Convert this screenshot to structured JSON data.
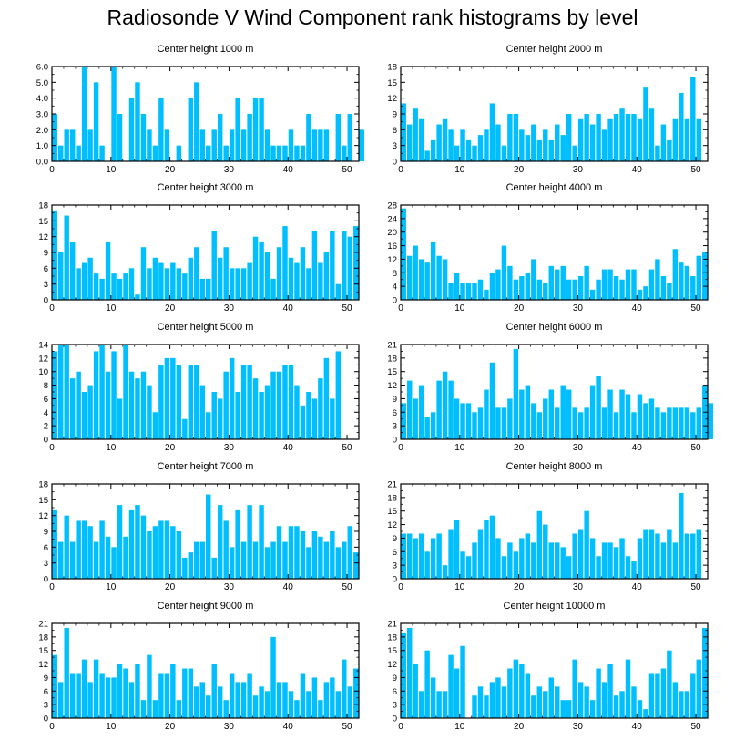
{
  "title": "Radiosonde V Wind Component rank histograms by level",
  "colors": {
    "bar": "#00BFFF",
    "axis": "#000000"
  },
  "chart_data": [
    {
      "type": "bar",
      "title": "Center height 1000 m",
      "x_ticks": [
        0,
        10,
        20,
        30,
        40,
        50
      ],
      "y_ticks": [
        "0.0",
        "1.0",
        "2.0",
        "3.0",
        "4.0",
        "5.0",
        "6.0"
      ],
      "xlim": [
        0,
        52
      ],
      "ylim": [
        0,
        6
      ],
      "values": [
        3,
        1,
        2,
        2,
        1,
        6,
        2,
        5,
        1,
        0,
        6,
        3,
        0,
        4,
        5,
        3,
        2,
        1,
        4,
        2,
        0,
        1,
        0,
        4,
        5,
        2,
        1,
        2,
        3,
        1,
        2,
        4,
        2,
        3,
        4,
        4,
        2,
        1,
        1,
        1,
        2,
        1,
        1,
        3,
        2,
        2,
        2,
        0,
        3,
        1,
        3,
        0,
        2
      ]
    },
    {
      "type": "bar",
      "title": "Center height 2000 m",
      "x_ticks": [
        0,
        10,
        20,
        30,
        40,
        50
      ],
      "y_ticks": [
        "0",
        "3",
        "6",
        "9",
        "12",
        "15",
        "18"
      ],
      "xlim": [
        0,
        52
      ],
      "ylim": [
        0,
        18
      ],
      "values": [
        11,
        7,
        10,
        8,
        2,
        4,
        7,
        8,
        6,
        3,
        6,
        4,
        3,
        5,
        6,
        11,
        7,
        3,
        9,
        9,
        6,
        5,
        7,
        4,
        6,
        4,
        7,
        5,
        9,
        3,
        8,
        9,
        7,
        9,
        6,
        8,
        9,
        10,
        9,
        9,
        8,
        14,
        10,
        3,
        7,
        4,
        8,
        13,
        8,
        16,
        8
      ]
    },
    {
      "type": "bar",
      "title": "Center height 3000 m",
      "x_ticks": [
        0,
        10,
        20,
        30,
        40,
        50
      ],
      "y_ticks": [
        "0",
        "3",
        "6",
        "9",
        "12",
        "15",
        "18"
      ],
      "xlim": [
        0,
        52
      ],
      "ylim": [
        0,
        18
      ],
      "values": [
        17,
        9,
        16,
        11,
        6,
        7,
        8,
        5,
        4,
        11,
        5,
        4,
        5,
        6,
        1,
        10,
        6,
        8,
        7,
        6,
        7,
        6,
        5,
        8,
        10,
        4,
        4,
        13,
        8,
        10,
        6,
        6,
        6,
        7,
        12,
        11,
        9,
        4,
        10,
        14,
        8,
        7,
        10,
        6,
        13,
        7,
        9,
        13,
        3,
        13,
        12,
        14
      ]
    },
    {
      "type": "bar",
      "title": "Center height 4000 m",
      "x_ticks": [
        0,
        10,
        20,
        30,
        40,
        50
      ],
      "y_ticks": [
        "0",
        "4",
        "8",
        "12",
        "16",
        "20",
        "24",
        "28"
      ],
      "xlim": [
        0,
        52
      ],
      "ylim": [
        0,
        28
      ],
      "values": [
        27,
        13,
        16,
        12,
        11,
        17,
        13,
        12,
        5,
        8,
        5,
        5,
        5,
        6,
        3,
        8,
        9,
        16,
        10,
        6,
        7,
        8,
        12,
        6,
        5,
        10,
        9,
        10,
        6,
        6,
        7,
        10,
        3,
        6,
        9,
        9,
        7,
        6,
        9,
        9,
        3,
        4,
        9,
        12,
        7,
        5,
        15,
        11,
        10,
        7,
        13,
        14
      ]
    },
    {
      "type": "bar",
      "title": "Center height 5000 m",
      "x_ticks": [
        0,
        10,
        20,
        30,
        40,
        50
      ],
      "y_ticks": [
        "0",
        "2",
        "4",
        "6",
        "8",
        "10",
        "12",
        "14"
      ],
      "xlim": [
        0,
        52
      ],
      "ylim": [
        0,
        14
      ],
      "values": [
        13,
        14,
        14,
        9,
        10,
        7,
        8,
        13,
        14,
        10,
        13,
        6,
        14,
        10,
        9,
        10,
        8,
        4,
        11,
        12,
        12,
        11,
        3,
        11,
        11,
        8,
        4,
        7,
        6,
        10,
        12,
        7,
        11,
        11,
        9,
        7,
        8,
        10,
        10,
        11,
        11,
        8,
        5,
        7,
        6,
        9,
        12,
        6,
        13
      ]
    },
    {
      "type": "bar",
      "title": "Center height 6000 m",
      "x_ticks": [
        0,
        10,
        20,
        30,
        40,
        50
      ],
      "y_ticks": [
        "0",
        "3",
        "6",
        "9",
        "12",
        "15",
        "18",
        "21"
      ],
      "xlim": [
        0,
        52
      ],
      "ylim": [
        0,
        21
      ],
      "values": [
        8,
        13,
        9,
        12,
        5,
        6,
        13,
        15,
        13,
        9,
        8,
        8,
        6,
        7,
        11,
        17,
        7,
        7,
        9,
        20,
        11,
        12,
        8,
        6,
        9,
        11,
        7,
        12,
        11,
        7,
        6,
        7,
        12,
        14,
        7,
        11,
        6,
        11,
        10,
        6,
        10,
        8,
        9,
        7,
        6,
        7,
        7,
        7,
        7,
        6,
        7,
        12,
        8
      ]
    },
    {
      "type": "bar",
      "title": "Center height 7000 m",
      "x_ticks": [
        0,
        10,
        20,
        30,
        40,
        50
      ],
      "y_ticks": [
        "0",
        "3",
        "6",
        "9",
        "12",
        "15",
        "18"
      ],
      "xlim": [
        0,
        52
      ],
      "ylim": [
        0,
        18
      ],
      "values": [
        13,
        7,
        12,
        7,
        11,
        11,
        10,
        7,
        11,
        8,
        6,
        14,
        8,
        13,
        14,
        12,
        9,
        10,
        11,
        11,
        10,
        9,
        4,
        5,
        7,
        7,
        16,
        4,
        14,
        11,
        6,
        13,
        7,
        14,
        7,
        14,
        6,
        7,
        10,
        7,
        10,
        10,
        9,
        6,
        9,
        8,
        7,
        9,
        6,
        7,
        10,
        5
      ]
    },
    {
      "type": "bar",
      "title": "Center height 8000 m",
      "x_ticks": [
        0,
        10,
        20,
        30,
        40,
        50
      ],
      "y_ticks": [
        "0",
        "3",
        "6",
        "9",
        "12",
        "15",
        "18",
        "21"
      ],
      "xlim": [
        0,
        52
      ],
      "ylim": [
        0,
        21
      ],
      "values": [
        10,
        10,
        9,
        10,
        6,
        9,
        10,
        3,
        11,
        13,
        6,
        5,
        8,
        11,
        13,
        14,
        9,
        5,
        8,
        6,
        9,
        10,
        8,
        15,
        12,
        8,
        8,
        7,
        5,
        10,
        11,
        15,
        9,
        5,
        8,
        8,
        7,
        9,
        5,
        4,
        9,
        11,
        11,
        10,
        8,
        11,
        8,
        19,
        10,
        10,
        11
      ]
    },
    {
      "type": "bar",
      "title": "Center height 9000 m",
      "x_ticks": [
        0,
        10,
        20,
        30,
        40,
        50
      ],
      "y_ticks": [
        "0",
        "3",
        "6",
        "9",
        "12",
        "15",
        "18",
        "21"
      ],
      "xlim": [
        0,
        52
      ],
      "ylim": [
        0,
        21
      ],
      "values": [
        14,
        8,
        20,
        10,
        10,
        13,
        8,
        13,
        10,
        9,
        9,
        12,
        11,
        8,
        12,
        4,
        14,
        4,
        10,
        10,
        12,
        4,
        11,
        11,
        7,
        8,
        5,
        12,
        7,
        4,
        10,
        8,
        8,
        10,
        5,
        7,
        6,
        18,
        8,
        8,
        6,
        4,
        10,
        6,
        9,
        4,
        8,
        9,
        6,
        13,
        7,
        11
      ]
    },
    {
      "type": "bar",
      "title": "Center height 10000 m",
      "x_ticks": [
        0,
        10,
        20,
        30,
        40,
        50
      ],
      "y_ticks": [
        "0",
        "3",
        "6",
        "9",
        "12",
        "15",
        "18",
        "21"
      ],
      "xlim": [
        0,
        52
      ],
      "ylim": [
        0,
        21
      ],
      "values": [
        19,
        20,
        12,
        6,
        15,
        9,
        6,
        6,
        14,
        11,
        16,
        0,
        5,
        7,
        5,
        8,
        9,
        7,
        11,
        13,
        12,
        10,
        5,
        7,
        6,
        9,
        7,
        4,
        4,
        13,
        8,
        7,
        4,
        11,
        8,
        12,
        5,
        6,
        13,
        7,
        4,
        2,
        10,
        10,
        11,
        15,
        8,
        6,
        6,
        10,
        13,
        20
      ]
    }
  ]
}
